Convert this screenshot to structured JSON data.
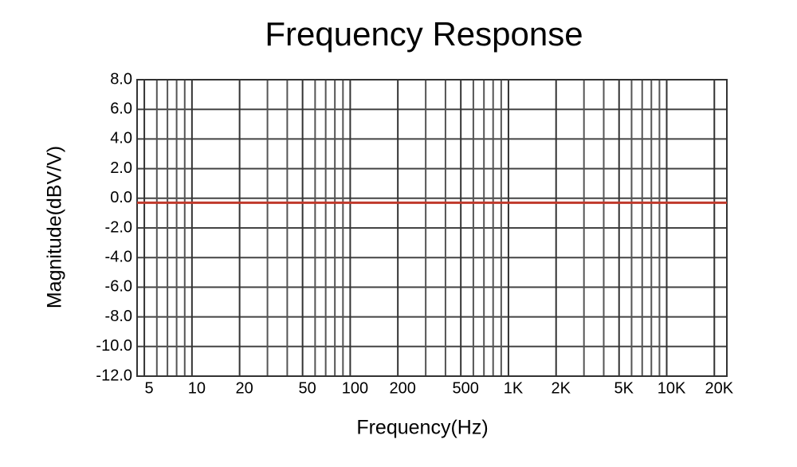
{
  "chart_data": {
    "type": "line",
    "title": "Frequency Response",
    "x_label": "Frequency(Hz)",
    "y_label": "Magnitude(dBV/V)",
    "x_scale": "log",
    "grid": true,
    "xlim": [
      4.5,
      24000
    ],
    "ylim": [
      -12,
      8
    ],
    "xticks": [
      5,
      10,
      20,
      50,
      100,
      200,
      500,
      {
        "value": 1000,
        "label": "1K"
      },
      {
        "value": 2000,
        "label": "2K"
      },
      {
        "value": 5000,
        "label": "5K"
      },
      {
        "value": 10000,
        "label": "10K"
      },
      {
        "value": 20000,
        "label": "20K"
      }
    ],
    "x_minor_ticks": [
      6,
      7,
      8,
      9,
      30,
      40,
      60,
      70,
      80,
      90,
      300,
      400,
      600,
      700,
      800,
      900,
      3000,
      4000,
      6000,
      7000,
      8000,
      9000
    ],
    "yticks": [
      {
        "value": 8,
        "label": "8.0"
      },
      {
        "value": 6,
        "label": "6.0"
      },
      {
        "value": 4,
        "label": "4.0"
      },
      {
        "value": 2,
        "label": "2.0"
      },
      {
        "value": 0,
        "label": "0.0"
      },
      {
        "value": -2,
        "label": "-2.0"
      },
      {
        "value": -4,
        "label": "-4.0"
      },
      {
        "value": -6,
        "label": "-6.0"
      },
      {
        "value": -8,
        "label": "-8.0"
      },
      {
        "value": -10,
        "label": "-10.0"
      },
      {
        "value": -12,
        "label": "-12.0"
      }
    ],
    "series": [
      {
        "color": "#c0392b",
        "x": [
          4.5,
          24000
        ],
        "values": [
          -0.3,
          -0.3
        ]
      }
    ]
  }
}
